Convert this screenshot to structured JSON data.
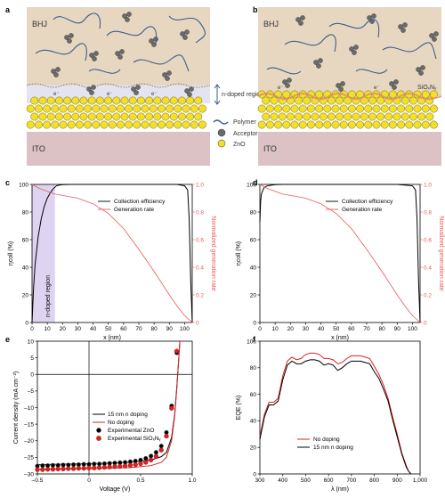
{
  "panel_labels": {
    "a": "a",
    "b": "b",
    "c": "c",
    "d": "d",
    "e": "e",
    "f": "f"
  },
  "schematic_a": {
    "bhj": "BHJ",
    "ito": "ITO",
    "ndoped": "n-doped region",
    "legend": {
      "polymer": "Polymer",
      "acceptor": "Acceptor",
      "zno": "ZnO"
    },
    "electron_label": "e⁻",
    "plus_label": "+"
  },
  "schematic_b": {
    "bhj": "BHJ",
    "ito": "ITO",
    "interlayer": "SiOₓNᵧ",
    "electron_label": "e⁻"
  },
  "colors": {
    "bhj": "#e8d7c0",
    "ito": "#dcc2c4",
    "zno": "#f1df2a",
    "acceptor": "#6b6b6b",
    "polymer": "#3a5f8a",
    "doped": "#d8ccef",
    "collection": "#000000",
    "generation": "#e85a5a"
  },
  "chart_data": [
    {
      "panel": "c",
      "type": "line",
      "xlabel": "x (nm)",
      "ylabel": "ηcoll (%)",
      "ylabel_right": "Normalized generation rate",
      "xlim": [
        0,
        105
      ],
      "ylim": [
        0,
        100
      ],
      "ylim_right": [
        0,
        1.0
      ],
      "xticks": [
        "0",
        "10",
        "20",
        "30",
        "40",
        "50",
        "60",
        "70",
        "80",
        "90",
        "100"
      ],
      "yticks": [
        "0",
        "20",
        "40",
        "60",
        "80",
        "100"
      ],
      "yticks_right": [
        "0",
        "0.2",
        "0.4",
        "0.6",
        "0.8",
        "1.0"
      ],
      "shaded_region": {
        "x": [
          0,
          15
        ],
        "label": "n-doped region"
      },
      "legend": [
        "Collection efficiency",
        "Generation rate"
      ],
      "series": [
        {
          "name": "Collection efficiency",
          "axis": "left",
          "x": [
            0,
            1,
            2,
            4,
            6,
            8,
            10,
            12,
            14,
            15,
            16,
            18,
            20,
            25,
            30,
            40,
            50,
            60,
            70,
            80,
            90,
            95,
            100,
            102,
            103,
            104,
            105
          ],
          "y": [
            0,
            25,
            42,
            62,
            75,
            84,
            90,
            94,
            97,
            98,
            99,
            99.5,
            99.8,
            100,
            100,
            100,
            100,
            100,
            100,
            100,
            100,
            100,
            99,
            96,
            75,
            30,
            0
          ]
        },
        {
          "name": "Generation rate",
          "axis": "right",
          "x": [
            0,
            5,
            10,
            15,
            20,
            30,
            40,
            50,
            60,
            70,
            80,
            90,
            95,
            100,
            105
          ],
          "y": [
            1.0,
            0.97,
            0.95,
            0.93,
            0.92,
            0.9,
            0.86,
            0.79,
            0.68,
            0.53,
            0.37,
            0.2,
            0.12,
            0.05,
            0.0
          ]
        }
      ]
    },
    {
      "panel": "d",
      "type": "line",
      "xlabel": "x (nm)",
      "ylabel": "ηcoll (%)",
      "ylabel_right": "Normalized generation rate",
      "xlim": [
        0,
        105
      ],
      "ylim": [
        0,
        100
      ],
      "ylim_right": [
        0,
        1.0
      ],
      "xticks": [
        "0",
        "10",
        "20",
        "30",
        "40",
        "50",
        "60",
        "70",
        "80",
        "90",
        "100"
      ],
      "yticks": [
        "0",
        "20",
        "40",
        "60",
        "80",
        "100"
      ],
      "yticks_right": [
        "0",
        "0.2",
        "0.4",
        "0.6",
        "0.8",
        "1.0"
      ],
      "legend": [
        "Collection efficiency",
        "Generation rate"
      ],
      "series": [
        {
          "name": "Collection efficiency",
          "axis": "left",
          "x": [
            0,
            0.5,
            1,
            2,
            3,
            5,
            8,
            10,
            15,
            20,
            30,
            50,
            70,
            90,
            100,
            102,
            103,
            104,
            105
          ],
          "y": [
            73,
            88,
            93,
            96,
            98,
            99,
            99.5,
            99.8,
            100,
            100,
            100,
            100,
            100,
            100,
            99,
            96,
            75,
            30,
            0
          ]
        },
        {
          "name": "Generation rate",
          "axis": "right",
          "x": [
            0,
            5,
            10,
            15,
            20,
            30,
            40,
            50,
            60,
            70,
            80,
            90,
            95,
            100,
            105
          ],
          "y": [
            1.0,
            0.97,
            0.95,
            0.93,
            0.92,
            0.9,
            0.86,
            0.79,
            0.68,
            0.53,
            0.37,
            0.2,
            0.12,
            0.05,
            0.0
          ]
        }
      ]
    },
    {
      "panel": "e",
      "type": "line",
      "xlabel": "Voltage (V)",
      "ylabel": "Current density (mA cm⁻²)",
      "xlim": [
        -0.5,
        1.0
      ],
      "ylim": [
        -30,
        10
      ],
      "xticks": [
        "–0.5",
        "0",
        "0.5",
        "1.0"
      ],
      "yticks": [
        "10",
        "5",
        "0",
        "–5",
        "–10",
        "–15",
        "–20",
        "–25",
        "–30"
      ],
      "legend": [
        "15 nm n doping",
        "No doping",
        "Experimental ZnO",
        "Experimental SiOₓNᵧ"
      ],
      "series": [
        {
          "name": "15 nm n doping",
          "kind": "line",
          "color": "#000000",
          "x": [
            -0.5,
            -0.2,
            0,
            0.2,
            0.4,
            0.6,
            0.7,
            0.75,
            0.8,
            0.83,
            0.85,
            0.87,
            0.88
          ],
          "y": [
            -27.2,
            -27.0,
            -26.9,
            -26.7,
            -26.5,
            -25.8,
            -24.8,
            -23.5,
            -19,
            -12,
            -4,
            5,
            10
          ]
        },
        {
          "name": "No doping",
          "kind": "line",
          "color": "#e02020",
          "x": [
            -0.5,
            -0.2,
            0,
            0.2,
            0.4,
            0.6,
            0.7,
            0.75,
            0.8,
            0.83,
            0.85,
            0.87,
            0.88
          ],
          "y": [
            -28.6,
            -28.5,
            -28.4,
            -28.3,
            -28.1,
            -27.5,
            -26.5,
            -25,
            -20,
            -12.5,
            -4.5,
            5,
            10
          ]
        },
        {
          "name": "Experimental ZnO",
          "kind": "marker",
          "color": "#000000",
          "x": [
            -0.5,
            -0.45,
            -0.4,
            -0.35,
            -0.3,
            -0.25,
            -0.2,
            -0.15,
            -0.1,
            -0.05,
            0,
            0.05,
            0.1,
            0.15,
            0.2,
            0.25,
            0.3,
            0.35,
            0.4,
            0.45,
            0.5,
            0.55,
            0.6,
            0.65,
            0.7,
            0.75,
            0.8,
            0.85
          ],
          "y": [
            -27.6,
            -27.5,
            -27.5,
            -27.4,
            -27.4,
            -27.3,
            -27.3,
            -27.2,
            -27.2,
            -27.1,
            -27.1,
            -27.0,
            -27.0,
            -26.9,
            -26.8,
            -26.7,
            -26.6,
            -26.5,
            -26.3,
            -26.1,
            -25.8,
            -25.3,
            -24.6,
            -23.5,
            -21.6,
            -17.5,
            -9.5,
            6.5
          ]
        },
        {
          "name": "Experimental SiOₓNᵧ",
          "kind": "marker",
          "color": "#e02020",
          "x": [
            -0.5,
            -0.45,
            -0.4,
            -0.35,
            -0.3,
            -0.25,
            -0.2,
            -0.15,
            -0.1,
            -0.05,
            0,
            0.05,
            0.1,
            0.15,
            0.2,
            0.25,
            0.3,
            0.35,
            0.4,
            0.45,
            0.5,
            0.55,
            0.6,
            0.65,
            0.7,
            0.75,
            0.8,
            0.85
          ],
          "y": [
            -28.7,
            -28.7,
            -28.6,
            -28.6,
            -28.5,
            -28.5,
            -28.4,
            -28.4,
            -28.3,
            -28.3,
            -28.2,
            -28.2,
            -28.1,
            -28.0,
            -27.9,
            -27.8,
            -27.7,
            -27.6,
            -27.4,
            -27.2,
            -26.9,
            -26.5,
            -25.8,
            -24.7,
            -22.8,
            -18.6,
            -10.2,
            7
          ]
        }
      ]
    },
    {
      "panel": "f",
      "type": "line",
      "xlabel": "λ (nm)",
      "ylabel": "EQE (%)",
      "xlim": [
        300,
        1000
      ],
      "ylim": [
        0,
        100
      ],
      "xticks": [
        "300",
        "400",
        "500",
        "600",
        "700",
        "800",
        "900",
        "1,000"
      ],
      "yticks": [
        "0",
        "20",
        "40",
        "60",
        "80",
        "100"
      ],
      "legend": [
        "No doping",
        "15 nm n doping"
      ],
      "series": [
        {
          "name": "No doping",
          "color": "#e02020",
          "x": [
            300,
            320,
            340,
            360,
            380,
            400,
            420,
            440,
            460,
            480,
            500,
            520,
            540,
            560,
            580,
            600,
            620,
            640,
            660,
            680,
            700,
            720,
            740,
            760,
            780,
            800,
            820,
            840,
            860,
            880,
            900,
            920,
            940,
            950,
            960
          ],
          "y": [
            28,
            45,
            54,
            54,
            57,
            74,
            85,
            88,
            86,
            87,
            90,
            91,
            91,
            90,
            87,
            87,
            86,
            83,
            84,
            87,
            89,
            89,
            89,
            88,
            87,
            81,
            75,
            67,
            57,
            43,
            30,
            16,
            6,
            2,
            0
          ]
        },
        {
          "name": "15 nm n doping",
          "color": "#000000",
          "x": [
            300,
            320,
            340,
            360,
            380,
            400,
            420,
            440,
            460,
            480,
            500,
            520,
            540,
            560,
            580,
            600,
            620,
            640,
            660,
            680,
            700,
            720,
            740,
            760,
            780,
            800,
            820,
            840,
            860,
            880,
            900,
            920,
            940,
            950,
            960
          ],
          "y": [
            26,
            43,
            52,
            52,
            55,
            71,
            82,
            85,
            83,
            83,
            85,
            86,
            86,
            85,
            82,
            83,
            82,
            78,
            80,
            83,
            85,
            85,
            85,
            84,
            83,
            77,
            72,
            64,
            55,
            41,
            28,
            15,
            5,
            2,
            0
          ]
        }
      ]
    }
  ]
}
